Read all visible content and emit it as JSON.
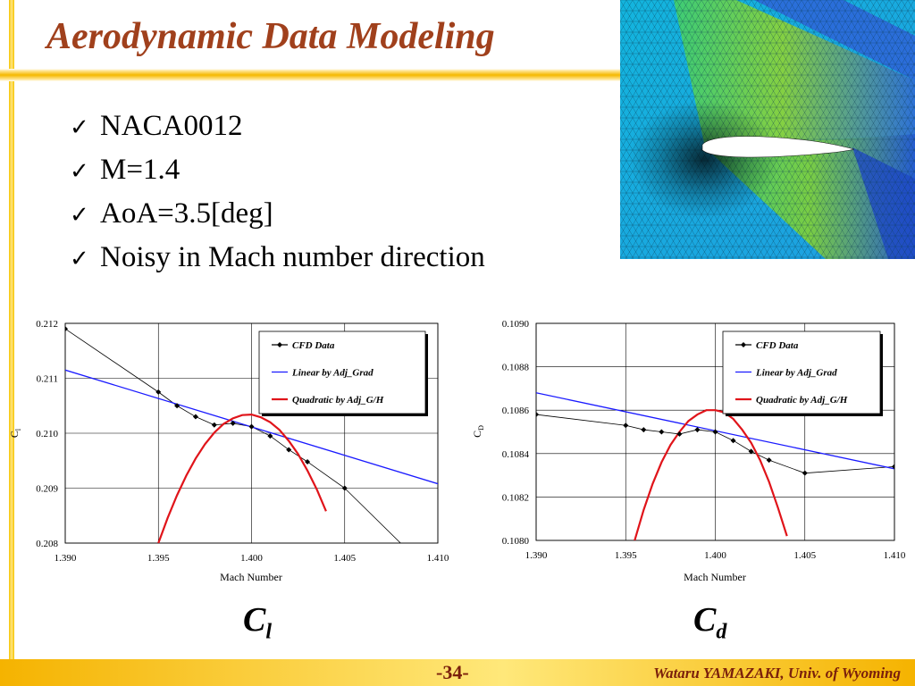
{
  "slide": {
    "title": "Aerodynamic Data Modeling",
    "bullets": [
      "NACA0012",
      "M=1.4",
      "AoA=3.5[deg]",
      "Noisy in Mach number direction"
    ],
    "check_glyph": "✓",
    "page_number": "-34-",
    "credit": "Wataru YAMAZAKI, Univ. of Wyoming",
    "captions": {
      "cl": {
        "base": "C",
        "sub": "l"
      },
      "cd": {
        "base": "C",
        "sub": "d"
      }
    },
    "colors": {
      "title": "#a0401c",
      "accent_gold": "#f5b800",
      "footer_text": "#7a1f0c",
      "cfd": "#000000",
      "linear": "#1a1aff",
      "quadratic": "#e0141a"
    }
  },
  "chart_data": [
    {
      "id": "cl",
      "type": "line",
      "title": "",
      "xlabel": "Mach Number",
      "ylabel": "Cl",
      "ylabel_base": "C",
      "ylabel_sub": "l",
      "xlim": [
        1.39,
        1.41
      ],
      "ylim": [
        0.208,
        0.212
      ],
      "xticks": [
        1.39,
        1.395,
        1.4,
        1.405,
        1.41
      ],
      "xtick_labels": [
        "1.390",
        "1.395",
        "1.400",
        "1.405",
        "1.410"
      ],
      "yticks": [
        0.208,
        0.209,
        0.21,
        0.211,
        0.212
      ],
      "ytick_labels": [
        "0.208",
        "0.209",
        "0.210",
        "0.211",
        "0.212"
      ],
      "grid": true,
      "legend_position": "top-right",
      "series": [
        {
          "name": "CFD Data",
          "style": "line-marker",
          "x": [
            1.39,
            1.395,
            1.396,
            1.397,
            1.398,
            1.399,
            1.4,
            1.401,
            1.402,
            1.403,
            1.405,
            1.408
          ],
          "y": [
            0.2119,
            0.21075,
            0.2105,
            0.2103,
            0.21015,
            0.21018,
            0.21012,
            0.20995,
            0.2097,
            0.20948,
            0.209,
            0.208
          ],
          "marker_count": 11
        },
        {
          "name": "Linear by Adj_Grad",
          "style": "line",
          "x": [
            1.39,
            1.41
          ],
          "y": [
            0.21115,
            0.20908
          ]
        },
        {
          "name": "Quadratic by Adj_G/H",
          "style": "line",
          "x": [
            1.395,
            1.3955,
            1.396,
            1.3965,
            1.397,
            1.3975,
            1.398,
            1.3985,
            1.399,
            1.3995,
            1.4,
            1.4005,
            1.401,
            1.4015,
            1.402,
            1.4025,
            1.403,
            1.4035,
            1.404
          ],
          "y": [
            0.208,
            0.20846,
            0.20887,
            0.20923,
            0.20954,
            0.2098,
            0.21001,
            0.21017,
            0.21027,
            0.21033,
            0.21034,
            0.21029,
            0.2102,
            0.21006,
            0.20986,
            0.20962,
            0.20932,
            0.20898,
            0.20858
          ]
        }
      ]
    },
    {
      "id": "cd",
      "type": "line",
      "title": "",
      "xlabel": "Mach Number",
      "ylabel": "CD",
      "ylabel_base": "C",
      "ylabel_sub": "D",
      "xlim": [
        1.39,
        1.41
      ],
      "ylim": [
        0.108,
        0.109
      ],
      "xticks": [
        1.39,
        1.395,
        1.4,
        1.405,
        1.41
      ],
      "xtick_labels": [
        "1.390",
        "1.395",
        "1.400",
        "1.405",
        "1.410"
      ],
      "yticks": [
        0.108,
        0.1082,
        0.1084,
        0.1086,
        0.1088,
        0.109
      ],
      "ytick_labels": [
        "0.1080",
        "0.1082",
        "0.1084",
        "0.1086",
        "0.1088",
        "0.1090"
      ],
      "grid": true,
      "legend_position": "top-right",
      "series": [
        {
          "name": "CFD Data",
          "style": "line-marker",
          "x": [
            1.39,
            1.395,
            1.396,
            1.397,
            1.398,
            1.399,
            1.4,
            1.401,
            1.402,
            1.403,
            1.405,
            1.41
          ],
          "y": [
            0.10858,
            0.10853,
            0.10851,
            0.1085,
            0.10849,
            0.10851,
            0.1085,
            0.10846,
            0.10841,
            0.10837,
            0.10831,
            0.10834
          ]
        },
        {
          "name": "Linear by Adj_Grad",
          "style": "line",
          "x": [
            1.39,
            1.41
          ],
          "y": [
            0.10868,
            0.10833
          ]
        },
        {
          "name": "Quadratic by Adj_G/H",
          "style": "line",
          "x": [
            1.3955,
            1.396,
            1.3965,
            1.397,
            1.3975,
            1.398,
            1.3985,
            1.399,
            1.3995,
            1.4,
            1.4005,
            1.401,
            1.4015,
            1.402,
            1.4025,
            1.403,
            1.4035,
            1.404
          ],
          "y": [
            0.108,
            0.10814,
            0.10826,
            0.10836,
            0.10844,
            0.1085,
            0.10855,
            0.10858,
            0.1086,
            0.1086,
            0.10859,
            0.10856,
            0.10851,
            0.10845,
            0.10837,
            0.10827,
            0.10815,
            0.10802
          ]
        }
      ]
    }
  ]
}
